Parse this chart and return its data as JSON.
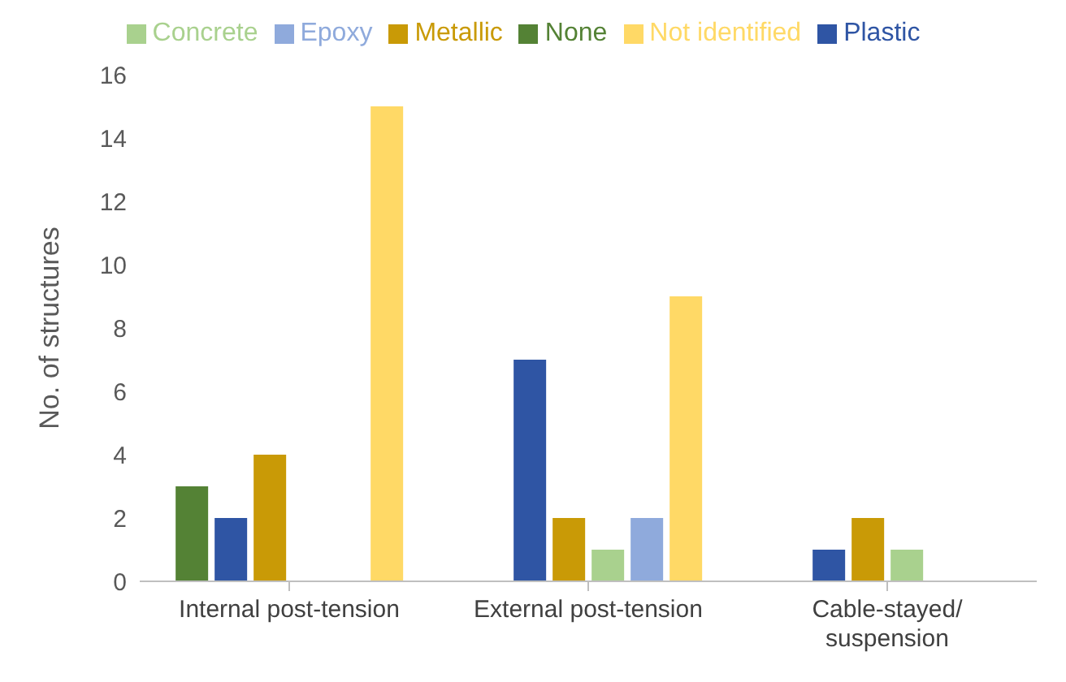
{
  "chart_data": {
    "type": "bar",
    "ylabel": "No. of structures",
    "categories": [
      "Internal post-tension",
      "External post-tension",
      "Cable-stayed/ suspension"
    ],
    "series": [
      {
        "name": "None",
        "color": "#548235",
        "values": [
          3,
          null,
          null
        ]
      },
      {
        "name": "Plastic",
        "color": "#2f55a4",
        "values": [
          2,
          7,
          1
        ]
      },
      {
        "name": "Metallic",
        "color": "#c99a06",
        "values": [
          4,
          2,
          2
        ]
      },
      {
        "name": "Concrete",
        "color": "#a9d18e",
        "values": [
          null,
          1,
          1
        ]
      },
      {
        "name": "Epoxy",
        "color": "#8faadc",
        "values": [
          null,
          2,
          null
        ]
      },
      {
        "name": "Not identified",
        "color": "#ffd966",
        "values": [
          15,
          9,
          null
        ]
      }
    ],
    "ylim": [
      0,
      16
    ],
    "yticks": [
      0,
      2,
      4,
      6,
      8,
      10,
      12,
      14,
      16
    ],
    "grid": false,
    "legend": "top"
  }
}
